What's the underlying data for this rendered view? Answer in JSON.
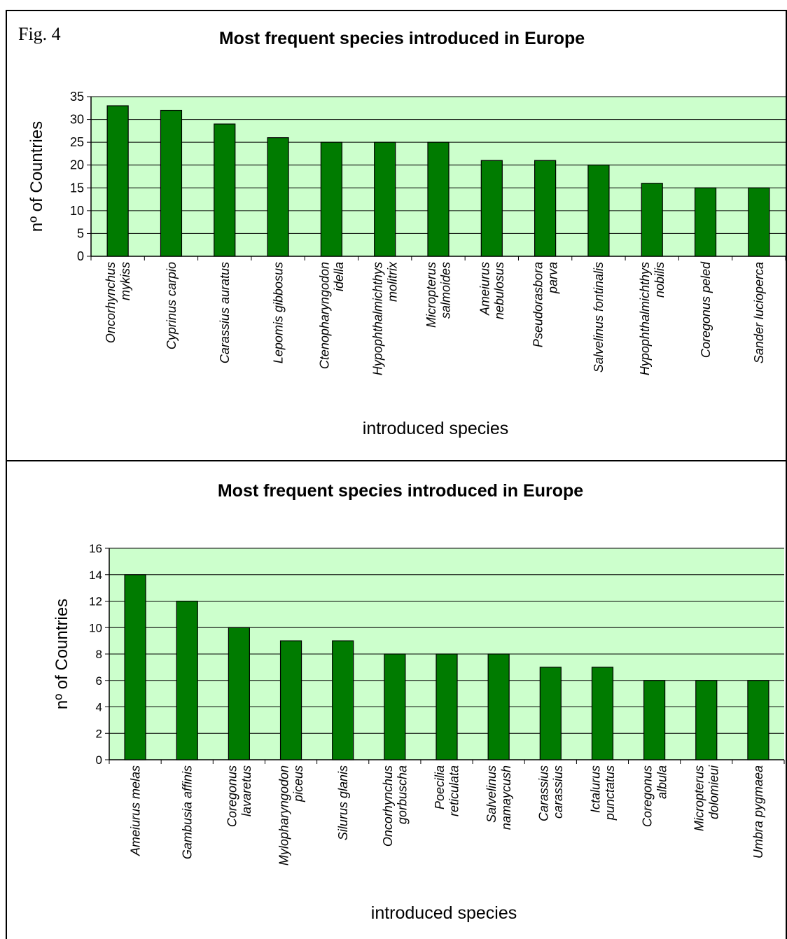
{
  "figure_label": "Fig. 4",
  "colors": {
    "plot_bg": "#ccffcc",
    "bar_fill": "#007b00",
    "bar_edge": "#000000",
    "grid": "#000000"
  },
  "chart_data": [
    {
      "type": "bar",
      "title": "Most frequent species introduced in Europe",
      "xlabel": "introduced species",
      "ylabel": "nº of Countries",
      "ylim": [
        0,
        35
      ],
      "yticks": [
        0,
        5,
        10,
        15,
        20,
        25,
        30,
        35
      ],
      "grid": true,
      "categories": [
        [
          "Oncorhynchus",
          "mykiss"
        ],
        [
          "Cyprinus carpio"
        ],
        [
          "Carassius auratus"
        ],
        [
          "Lepomis gibbosus"
        ],
        [
          "Ctenopharyngodon",
          "idella"
        ],
        [
          "Hypophthalmichthys",
          "molitrix"
        ],
        [
          "Micropterus",
          "salmoides"
        ],
        [
          "Ameiurus",
          "nebulosus"
        ],
        [
          "Pseudorasbora",
          "parva"
        ],
        [
          "Salvelinus fontinalis"
        ],
        [
          "Hypophthalmichthys",
          "nobilis"
        ],
        [
          "Coregonus peled"
        ],
        [
          "Sander lucioperca"
        ]
      ],
      "values": [
        33,
        32,
        29,
        26,
        25,
        25,
        25,
        21,
        21,
        20,
        16,
        15,
        15
      ]
    },
    {
      "type": "bar",
      "title": "Most frequent species introduced in Europe",
      "xlabel": "introduced species",
      "ylabel": "nº of Countries",
      "ylim": [
        0,
        16
      ],
      "yticks": [
        0,
        2,
        4,
        6,
        8,
        10,
        12,
        14,
        16
      ],
      "grid": true,
      "categories": [
        [
          "Ameiurus melas"
        ],
        [
          "Gambusia affinis"
        ],
        [
          "Coregonus",
          "lavaretus"
        ],
        [
          "Mylopharyngodon",
          "piceus"
        ],
        [
          "Silurus glanis"
        ],
        [
          "Oncorhynchus",
          "gorbuscha"
        ],
        [
          "Poecilia",
          "reticulata"
        ],
        [
          "Salvelinus",
          "namaycush"
        ],
        [
          "Carassius",
          "carassius"
        ],
        [
          "Ictalurus",
          "punctatus"
        ],
        [
          "Coregonus",
          "albula"
        ],
        [
          "Micropterus",
          "dolomieui"
        ],
        [
          "Umbra pygmaea"
        ]
      ],
      "values": [
        14,
        12,
        10,
        9,
        9,
        8,
        8,
        8,
        7,
        7,
        6,
        6,
        6
      ]
    }
  ]
}
